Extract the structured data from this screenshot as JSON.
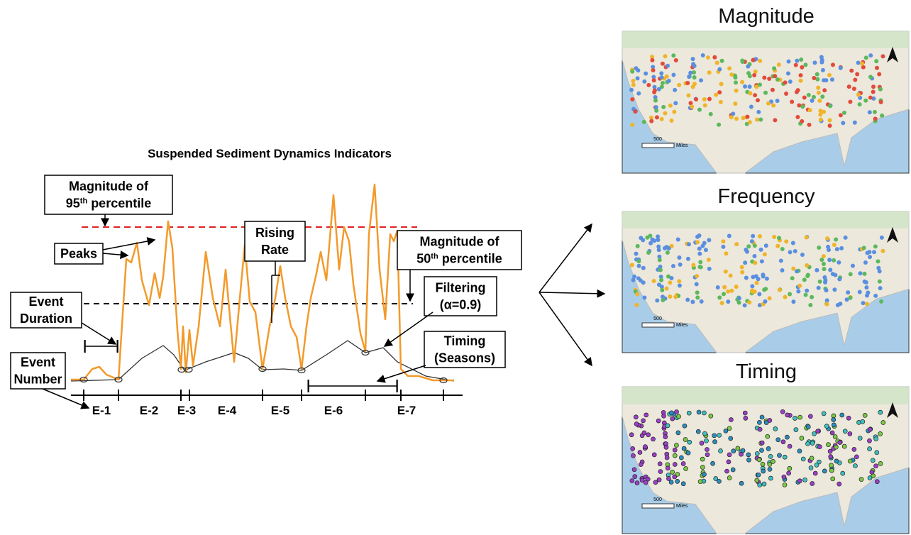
{
  "title": "Suspended Sediment Dynamics Indicators",
  "annotations": [
    {
      "lines": [
        [
          {
            "text": "Magnitude of"
          }
        ],
        [
          {
            "text": "95"
          },
          {
            "text": "th",
            "sup": true
          },
          {
            "text": " percentile"
          }
        ]
      ]
    },
    {
      "lines": [
        [
          {
            "text": "Peaks"
          }
        ]
      ]
    },
    {
      "lines": [
        [
          {
            "text": "Rising"
          }
        ],
        [
          {
            "text": "Rate"
          }
        ]
      ]
    },
    {
      "lines": [
        [
          {
            "text": "Magnitude of"
          }
        ],
        [
          {
            "text": "50"
          },
          {
            "text": "th",
            "sup": true
          },
          {
            "text": " percentile"
          }
        ]
      ]
    },
    {
      "lines": [
        [
          {
            "text": "Event"
          }
        ],
        [
          {
            "text": "Duration"
          }
        ]
      ]
    },
    {
      "lines": [
        [
          {
            "text": "Filtering"
          }
        ],
        [
          {
            "text": "(α=0.9)"
          }
        ]
      ]
    },
    {
      "lines": [
        [
          {
            "text": "Event"
          }
        ],
        [
          {
            "text": "Number"
          }
        ]
      ]
    },
    {
      "lines": [
        [
          {
            "text": "Timing"
          }
        ],
        [
          {
            "text": "(Seasons)"
          }
        ]
      ]
    }
  ],
  "events": [
    "E-1",
    "E-2",
    "E-3",
    "E-4",
    "E-5",
    "E-6",
    "E-7"
  ],
  "maps": [
    {
      "title": "Magnitude",
      "scale_label": "500",
      "scale_unit": "Miles"
    },
    {
      "title": "Frequency",
      "scale_label": "500",
      "scale_unit": "Miles"
    },
    {
      "title": "Timing",
      "scale_label": "500",
      "scale_unit": "Miles"
    }
  ]
}
